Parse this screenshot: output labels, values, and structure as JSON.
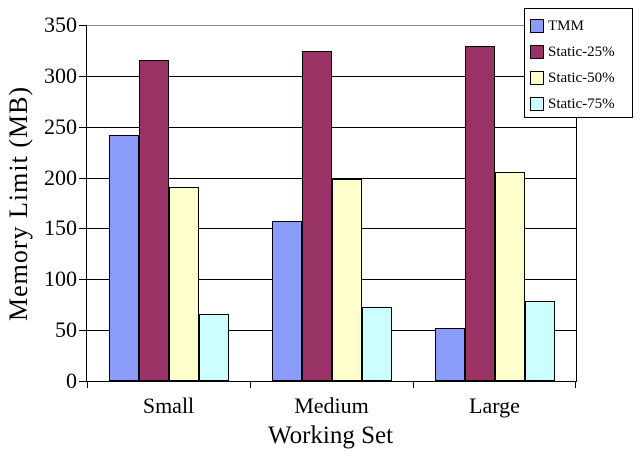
{
  "chart_data": {
    "type": "bar",
    "title": "",
    "xlabel": "Working Set",
    "ylabel": "Memory Limit (MB)",
    "categories": [
      "Small",
      "Medium",
      "Large"
    ],
    "series": [
      {
        "name": "TMM",
        "color": "#8A9BFA",
        "values": [
          242,
          157,
          52
        ]
      },
      {
        "name": "Static-25%",
        "color": "#993366",
        "values": [
          316,
          324,
          329
        ]
      },
      {
        "name": "Static-50%",
        "color": "#FFFFCC",
        "values": [
          191,
          199,
          205
        ]
      },
      {
        "name": "Static-75%",
        "color": "#CCFFFF",
        "values": [
          66,
          73,
          79
        ]
      }
    ],
    "ylim": [
      0,
      350
    ],
    "yticks": [
      0,
      50,
      100,
      150,
      200,
      250,
      300,
      350
    ],
    "grid": true,
    "legend_position": "top-right",
    "colors": {
      "axis": "#000000",
      "gridline": "#000000",
      "top_gridline": "#8C8C8C",
      "background": "#FFFFFF",
      "bar_border": "#000000",
      "legend_border": "#000000"
    }
  }
}
